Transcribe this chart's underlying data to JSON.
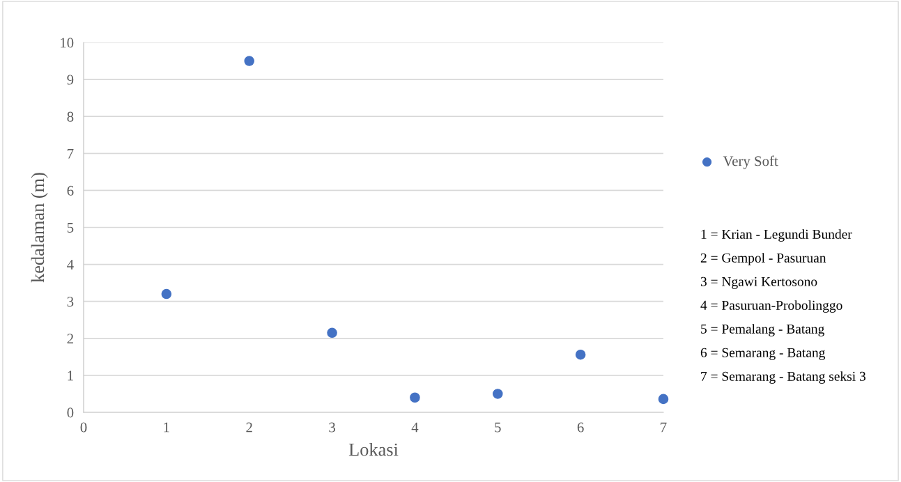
{
  "chart_data": {
    "type": "scatter",
    "xlabel": "Lokasi",
    "ylabel": "kedalaman (m)",
    "x": [
      1,
      2,
      3,
      4,
      5,
      6,
      7
    ],
    "series": [
      {
        "name": "Very Soft",
        "color": "#4472c4",
        "values": [
          3.2,
          9.5,
          2.15,
          0.4,
          0.5,
          1.56,
          0.36
        ]
      }
    ],
    "xlim": [
      0,
      7
    ],
    "xticks": [
      0,
      1,
      2,
      3,
      4,
      5,
      6,
      7
    ],
    "ylim": [
      0,
      10
    ],
    "yticks": [
      0,
      1,
      2,
      3,
      4,
      5,
      6,
      7,
      8,
      9,
      10
    ],
    "grid": "y",
    "legend": "right",
    "marker": "circle",
    "annotations": [
      "1 = Krian - Legundi Bunder",
      "2 = Gempol - Pasuruan",
      "3 = Ngawi Kertosono",
      "4 = Pasuruan-Probolinggo",
      "5 = Pemalang - Batang",
      "6 = Semarang - Batang",
      "7 = Semarang - Batang seksi 3"
    ]
  }
}
